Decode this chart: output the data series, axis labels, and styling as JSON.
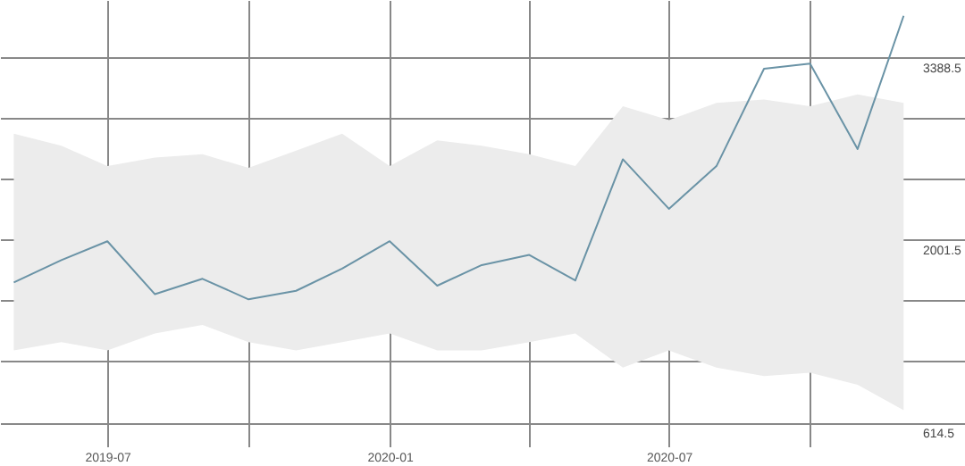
{
  "chart_data": {
    "type": "line",
    "x": [
      "2019-05",
      "2019-06",
      "2019-07",
      "2019-08",
      "2019-09",
      "2019-10",
      "2019-11",
      "2019-12",
      "2020-01",
      "2020-02",
      "2020-03",
      "2020-04",
      "2020-05",
      "2020-06",
      "2020-07",
      "2020-08",
      "2020-09",
      "2020-10",
      "2020-11",
      "2020-12"
    ],
    "series": [
      {
        "color": "#6a93a6",
        "values": [
          1677,
          1846,
          1989,
          1587,
          1704,
          1548,
          1613,
          1781,
          1989,
          1652,
          1808,
          1885,
          1691,
          2611,
          2235,
          2559,
          3298,
          3337,
          2689,
          3700
        ],
        "lower": [
          1160,
          1224,
          1160,
          1289,
          1354,
          1224,
          1160,
          1224,
          1289,
          1160,
          1160,
          1224,
          1289,
          1030,
          1160,
          1030,
          965,
          991,
          900,
          706
        ],
        "upper": [
          2805,
          2714,
          2559,
          2624,
          2650,
          2546,
          2676,
          2805,
          2559,
          2754,
          2714,
          2650,
          2559,
          3013,
          2909,
          3039,
          3065,
          3013,
          3104,
          3039
        ]
      }
    ],
    "xlim": [
      "2019-04-22",
      "2021-01-10"
    ],
    "xticks": [
      {
        "value": "2019-07",
        "label": "2019-07"
      },
      {
        "value": "2019-10",
        "label": null
      },
      {
        "value": "2020-01",
        "label": "2020-01"
      },
      {
        "value": "2020-04",
        "label": null
      },
      {
        "value": "2020-07",
        "label": "2020-07"
      },
      {
        "value": "2020-10",
        "label": null
      }
    ],
    "ylim": [
      500,
      3820
    ],
    "yticks": [
      614.5,
      {
        "value": 1076.8,
        "label": null
      },
      {
        "value": 1539.2,
        "label": null
      },
      2001.5,
      {
        "value": 2463.8,
        "label": null
      },
      {
        "value": 2926.2,
        "label": null
      },
      3388.5
    ],
    "grid": true,
    "marker": "none",
    "line_style": "solid"
  }
}
